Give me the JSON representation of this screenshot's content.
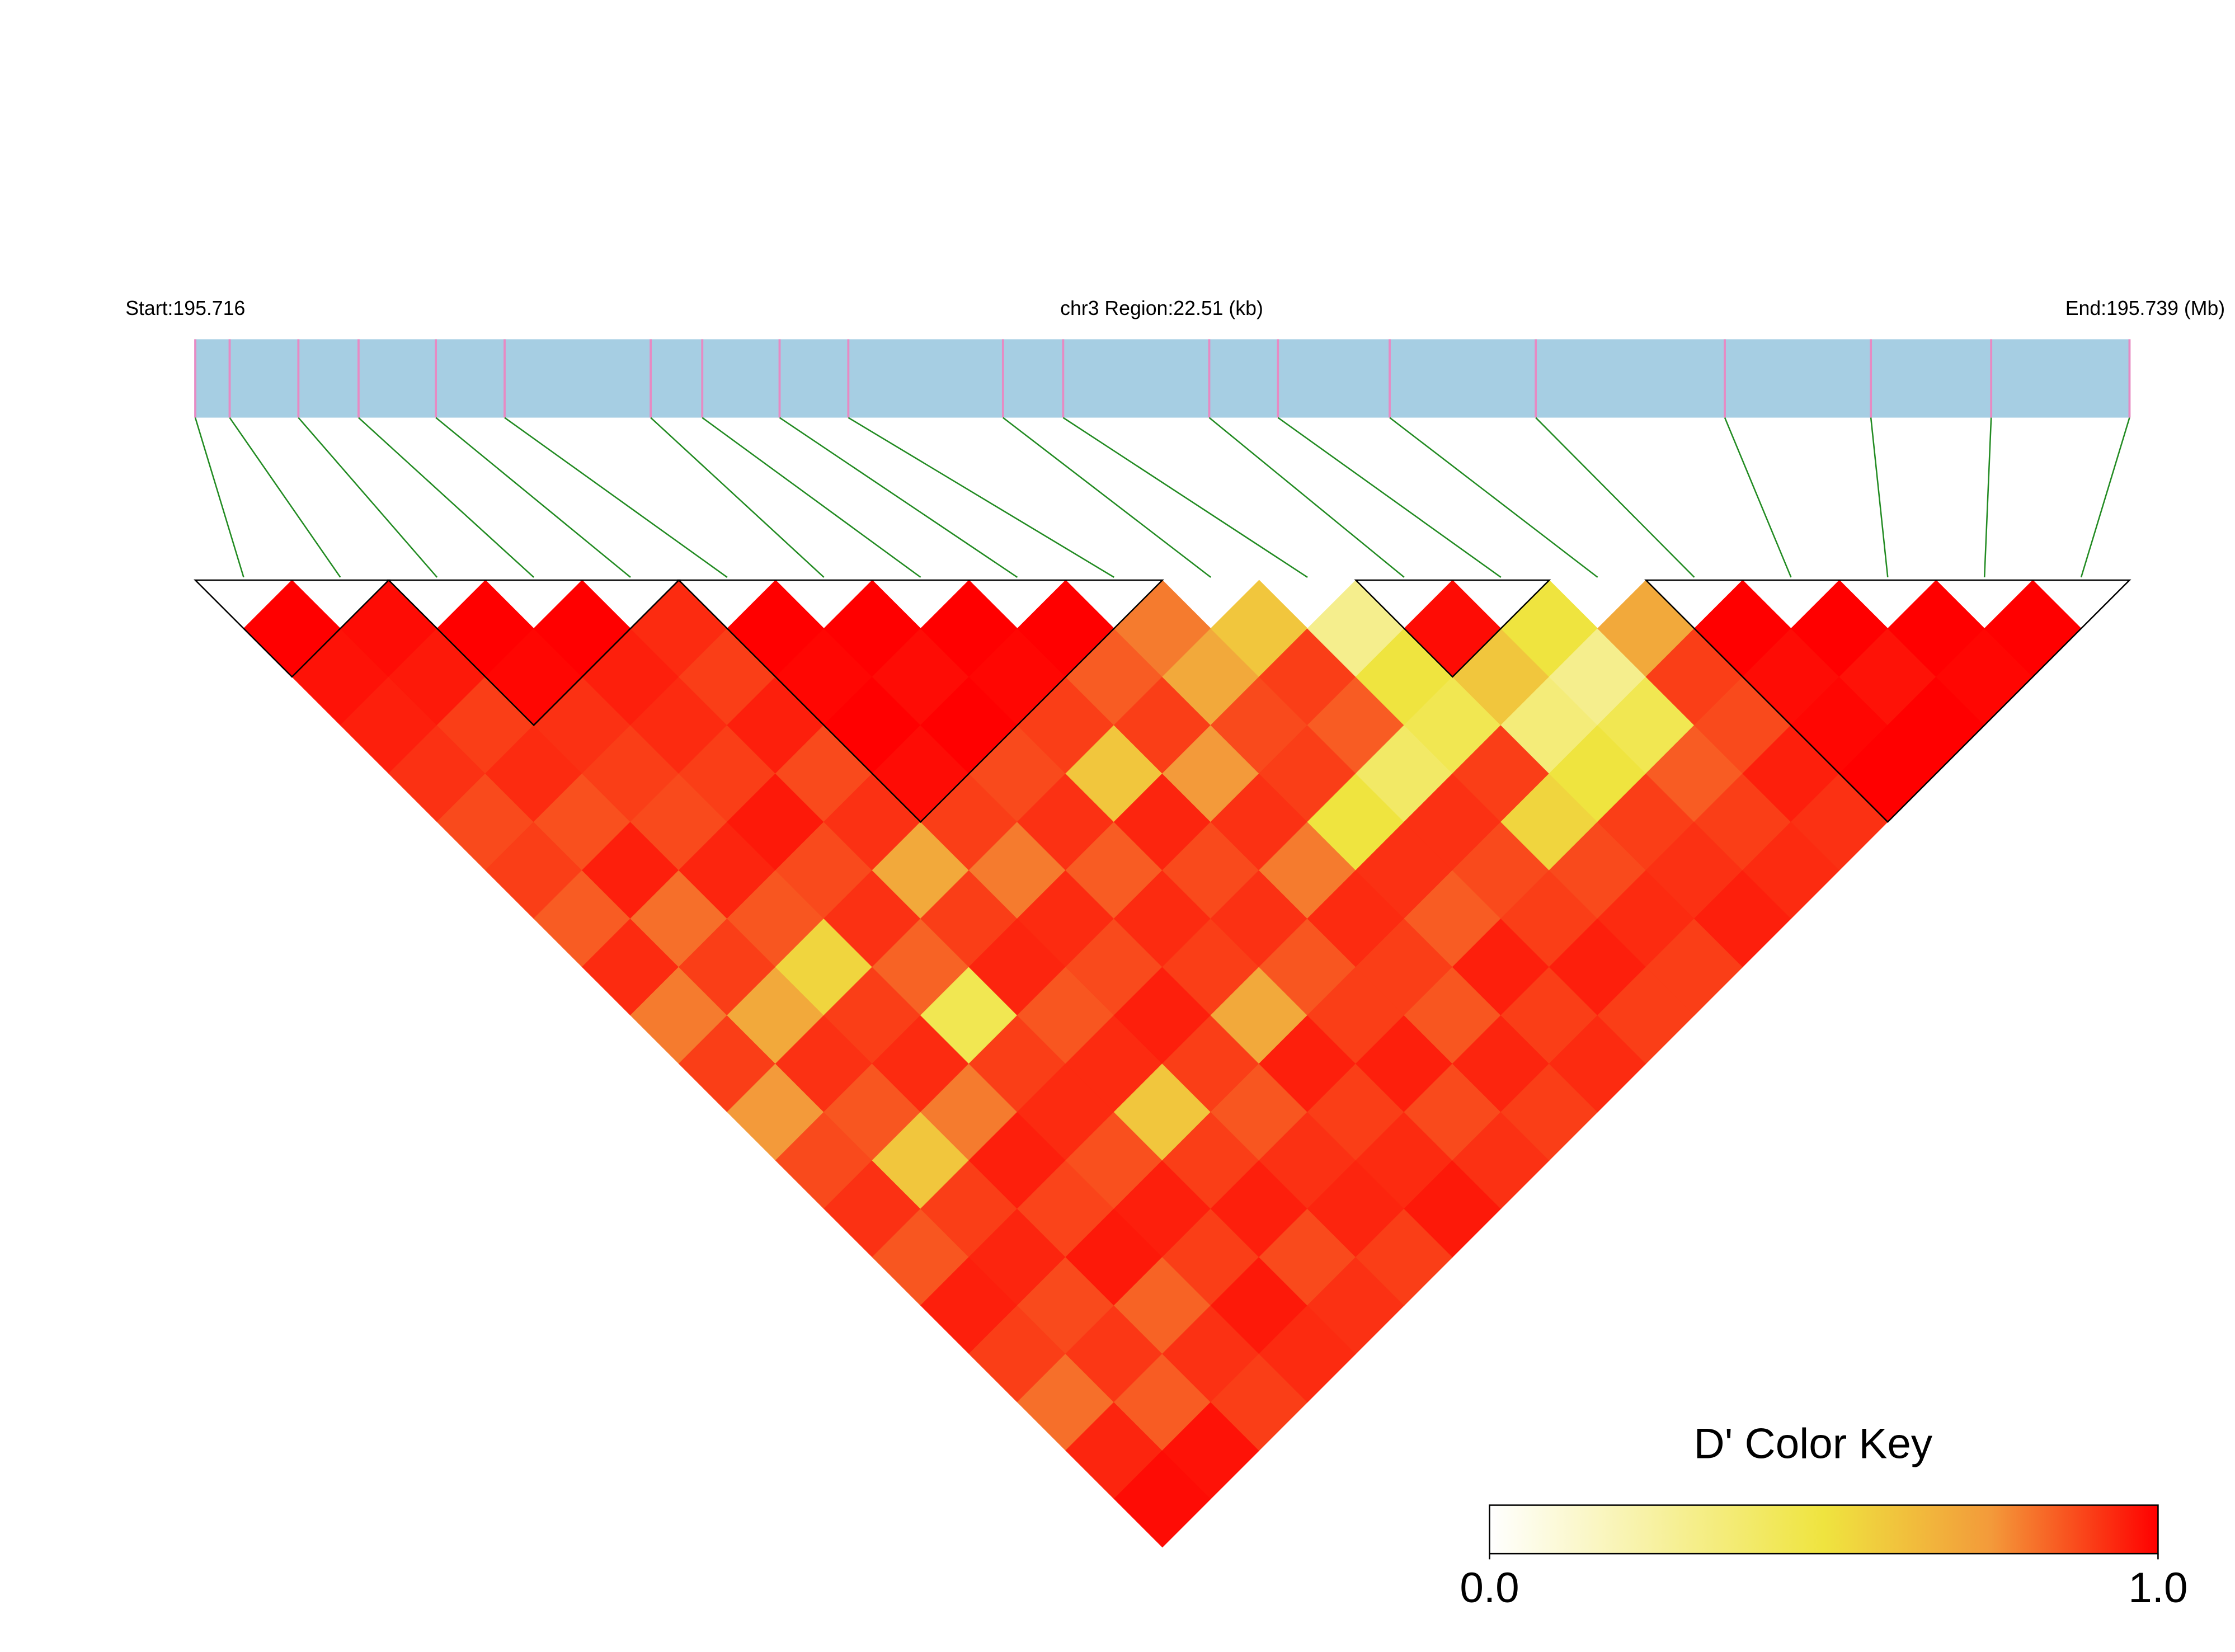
{
  "chart_data": {
    "type": "ld_heatmap",
    "start_label": "Start:195.716",
    "region_label": "chr3 Region:22.51 (kb)",
    "end_label": "End:195.739 (Mb)",
    "xlim": [
      0,
      22.51
    ],
    "snp_positions_kb": [
      0,
      0.4,
      1.2,
      1.9,
      2.8,
      3.6,
      5.3,
      5.9,
      6.8,
      7.6,
      9.4,
      10.1,
      11.8,
      12.6,
      13.9,
      15.6,
      17.8,
      19.5,
      20.9,
      22.51
    ],
    "bar_color": "#a6cee3",
    "snp_tick_color": "#e78ac3",
    "connector_color": "#228b22",
    "ld_matrix": [
      [
        1,
        0.97,
        0.95,
        0.92,
        0.88,
        0.9,
        0.85,
        0.93,
        0.8,
        0.9,
        0.75,
        0.88,
        0.92,
        0.86,
        0.95,
        0.9,
        0.82,
        0.94,
        0.98
      ],
      [
        0.98,
        0.96,
        0.9,
        0.93,
        0.87,
        0.95,
        0.82,
        0.9,
        0.7,
        0.92,
        0.86,
        0.6,
        0.9,
        0.94,
        0.88,
        0.91,
        0.85,
        0.97
      ],
      [
        1,
        0.99,
        0.92,
        0.9,
        0.88,
        0.94,
        0.86,
        0.55,
        0.9,
        0.93,
        0.8,
        0.95,
        0.89,
        0.96,
        0.84,
        0.92,
        0.9
      ],
      [
        1,
        0.95,
        0.93,
        0.9,
        0.96,
        0.88,
        0.92,
        0.84,
        0.45,
        0.9,
        0.93,
        0.87,
        0.95,
        0.9,
        0.96,
        0.93
      ],
      [
        0.93,
        0.9,
        0.95,
        0.88,
        0.92,
        0.7,
        0.9,
        0.94,
        0.86,
        0.93,
        0.6,
        0.9,
        0.95,
        0.88,
        0.92
      ],
      [
        1,
        0.99,
        1,
        0.98,
        0.9,
        0.8,
        0.93,
        0.88,
        0.95,
        0.9,
        0.86,
        0.92,
        0.94,
        0.9
      ],
      [
        1,
        0.98,
        1,
        0.88,
        0.92,
        0.85,
        0.93,
        0.9,
        0.7,
        0.95,
        0.9,
        0.93,
        0.96
      ],
      [
        1,
        0.99,
        0.9,
        0.6,
        0.94,
        0.88,
        0.92,
        0.86,
        0.9,
        0.95,
        0.88,
        0.92
      ],
      [
        1,
        0.85,
        0.9,
        0.75,
        0.92,
        0.8,
        0.93,
        0.9,
        0.86,
        0.94,
        0.9
      ],
      [
        0.8,
        0.7,
        0.88,
        0.9,
        0.5,
        0.92,
        0.85,
        0.95,
        0.9,
        0.93
      ],
      [
        0.6,
        0.9,
        0.85,
        0.4,
        0.92,
        0.88,
        0.9,
        0.95,
        0.9
      ],
      [
        0.3,
        0.5,
        0.45,
        0.9,
        0.55,
        0.88,
        0.93,
        0.9
      ],
      [
        0.98,
        0.6,
        0.35,
        0.5,
        0.9,
        0.92,
        0.95
      ],
      [
        0.5,
        0.3,
        0.45,
        0.85,
        0.9,
        0.93
      ],
      [
        0.7,
        0.9,
        0.88,
        0.95,
        0.92
      ],
      [
        1,
        0.98,
        0.99,
        1
      ],
      [
        1,
        0.97,
        1
      ],
      [
        1,
        0.99
      ],
      [
        1
      ]
    ],
    "blocks": [
      [
        0,
        1
      ],
      [
        2,
        4
      ],
      [
        5,
        9
      ],
      [
        12,
        13
      ],
      [
        15,
        19
      ]
    ],
    "colormap": [
      "#ffffff",
      "#f7f1a0",
      "#efe43f",
      "#f39a3a",
      "#ff0000"
    ],
    "color_key": {
      "title": "D' Color Key",
      "lim": [
        0,
        1
      ],
      "ticks": [
        {
          "value": 0,
          "label": "0.0"
        },
        {
          "value": 1,
          "label": "1.0"
        }
      ]
    }
  }
}
